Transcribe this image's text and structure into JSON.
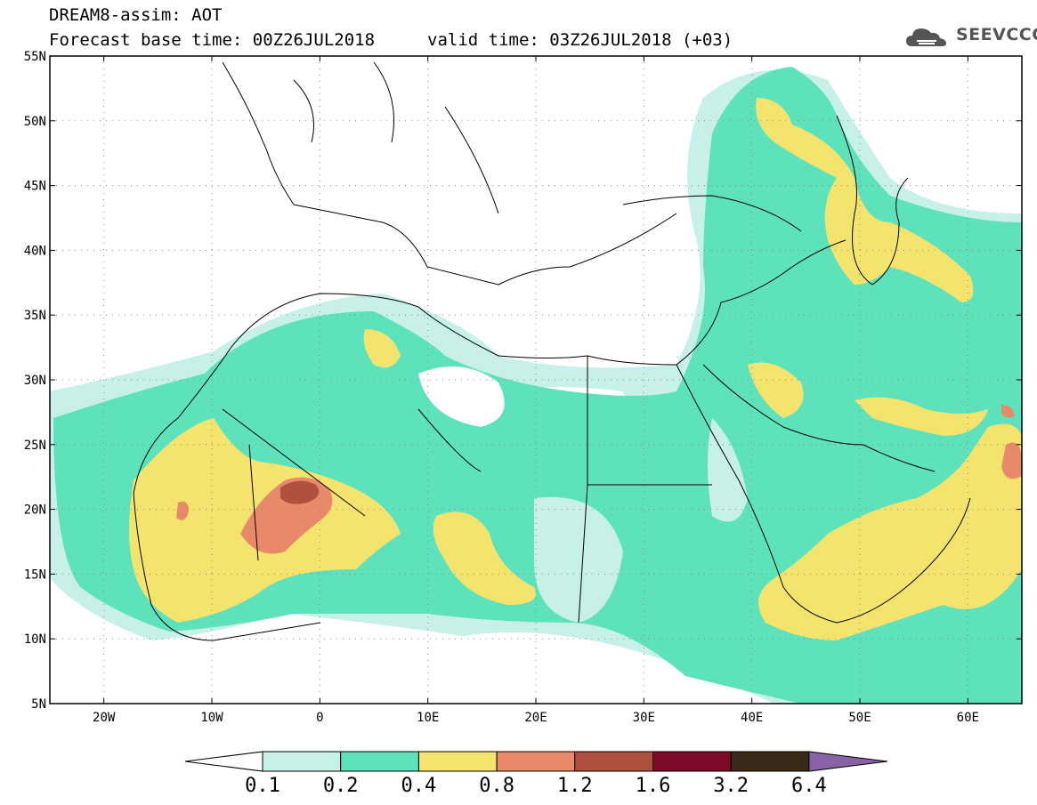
{
  "header": {
    "title": "DREAM8-assim: AOT",
    "base_time": "Forecast base time: 00Z26JUL2018",
    "valid_time": "valid time: 03Z26JUL2018 (+03)",
    "logo_text": "SEEVCCC",
    "logo_icon": "cloud-icon"
  },
  "map": {
    "lat_labels": [
      "55N",
      "50N",
      "45N",
      "40N",
      "35N",
      "30N",
      "25N",
      "20N",
      "15N",
      "10N",
      "5N"
    ],
    "lat_values": [
      55,
      50,
      45,
      40,
      35,
      30,
      25,
      20,
      15,
      10,
      5
    ],
    "lon_labels": [
      "20W",
      "10W",
      "0",
      "10E",
      "20E",
      "30E",
      "40E",
      "50E",
      "60E"
    ],
    "lon_values": [
      -20,
      -10,
      0,
      10,
      20,
      30,
      40,
      50,
      60
    ],
    "lon_range": [
      -25,
      65
    ],
    "lat_range": [
      5,
      55
    ]
  },
  "colorbar": {
    "labels": [
      "0.1",
      "0.2",
      "0.4",
      "0.8",
      "1.2",
      "1.6",
      "3.2",
      "6.4"
    ],
    "colors": [
      "#ffffff",
      "#c6f0e8",
      "#5ee2bc",
      "#f4e46e",
      "#e88a6a",
      "#b0503e",
      "#7e0a2a",
      "#3a2a1a",
      "#8a62a6"
    ]
  }
}
